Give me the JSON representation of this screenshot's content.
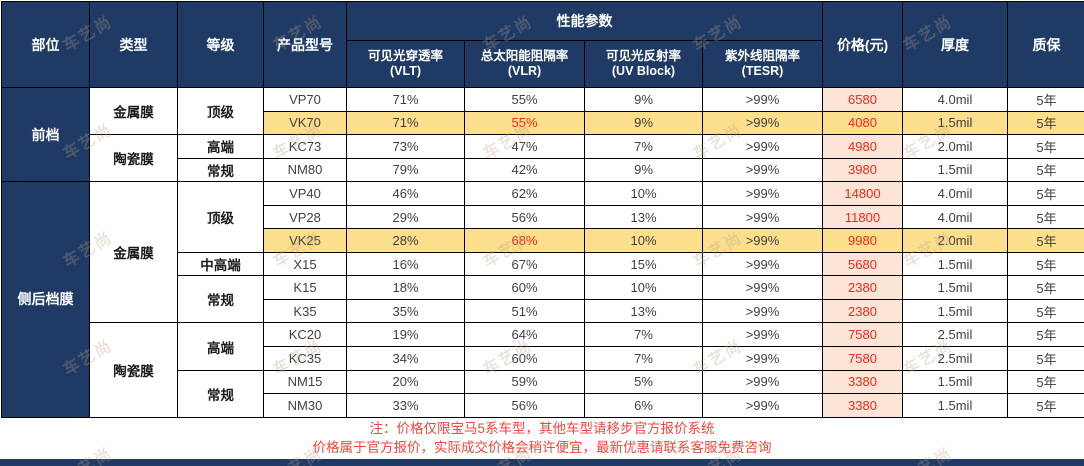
{
  "chart_data": {
    "type": "table",
    "headers": {
      "part": "部位",
      "type": "类型",
      "grade": "等级",
      "model": "产品型号",
      "performance_group": "性能参数",
      "perf_subcolumns": [
        {
          "line1": "可见光穿透率",
          "line2": "(VLT)"
        },
        {
          "line1": "总太阳能阻隔率",
          "line2": "(VLR)"
        },
        {
          "line1": "可见光反射率",
          "line2": "(UV Block)"
        },
        {
          "line1": "紫外线阻隔率",
          "line2": "(TESR)"
        }
      ],
      "price": "价格(元)",
      "thickness": "厚度",
      "warranty": "质保"
    },
    "part_groups": [
      {
        "label": "前档",
        "rowspan": 4
      },
      {
        "label": "侧后档膜",
        "rowspan": 10
      }
    ],
    "type_groups": [
      {
        "label": "金属膜",
        "rowspan": 2
      },
      {
        "label": "陶瓷膜",
        "rowspan": 2
      },
      {
        "label": "金属膜",
        "rowspan": 6
      },
      {
        "label": "陶瓷膜",
        "rowspan": 4
      }
    ],
    "grade_groups": [
      {
        "label": "顶级",
        "rowspan": 2
      },
      {
        "label": "高端",
        "rowspan": 1
      },
      {
        "label": "常规",
        "rowspan": 1
      },
      {
        "label": "顶级",
        "rowspan": 3
      },
      {
        "label": "中高端",
        "rowspan": 1
      },
      {
        "label": "常规",
        "rowspan": 2
      },
      {
        "label": "高端",
        "rowspan": 2
      },
      {
        "label": "常规",
        "rowspan": 2
      }
    ],
    "rows": [
      {
        "model": "VP70",
        "vlt": "71%",
        "vlr": "55%",
        "uv": "9%",
        "tesr": ">99%",
        "price": "6580",
        "thickness": "4.0mil",
        "warranty": "5年",
        "highlight": false,
        "vlr_red": false
      },
      {
        "model": "VK70",
        "vlt": "71%",
        "vlr": "55%",
        "uv": "9%",
        "tesr": ">99%",
        "price": "4080",
        "thickness": "1.5mil",
        "warranty": "5年",
        "highlight": true,
        "vlr_red": true
      },
      {
        "model": "KC73",
        "vlt": "73%",
        "vlr": "47%",
        "uv": "7%",
        "tesr": ">99%",
        "price": "4980",
        "thickness": "2.0mil",
        "warranty": "5年",
        "highlight": false,
        "vlr_red": false
      },
      {
        "model": "NM80",
        "vlt": "79%",
        "vlr": "42%",
        "uv": "9%",
        "tesr": ">99%",
        "price": "3980",
        "thickness": "1.5mil",
        "warranty": "5年",
        "highlight": false,
        "vlr_red": false
      },
      {
        "model": "VP40",
        "vlt": "46%",
        "vlr": "62%",
        "uv": "10%",
        "tesr": ">99%",
        "price": "14800",
        "thickness": "4.0mil",
        "warranty": "5年",
        "highlight": false,
        "vlr_red": false
      },
      {
        "model": "VP28",
        "vlt": "29%",
        "vlr": "56%",
        "uv": "13%",
        "tesr": ">99%",
        "price": "11800",
        "thickness": "4.0mil",
        "warranty": "5年",
        "highlight": false,
        "vlr_red": false
      },
      {
        "model": "VK25",
        "vlt": "28%",
        "vlr": "68%",
        "uv": "10%",
        "tesr": ">99%",
        "price": "9980",
        "thickness": "2.0mil",
        "warranty": "5年",
        "highlight": true,
        "vlr_red": true
      },
      {
        "model": "X15",
        "vlt": "16%",
        "vlr": "67%",
        "uv": "15%",
        "tesr": ">99%",
        "price": "5680",
        "thickness": "1.5mil",
        "warranty": "5年",
        "highlight": false,
        "vlr_red": false
      },
      {
        "model": "K15",
        "vlt": "18%",
        "vlr": "60%",
        "uv": "10%",
        "tesr": ">99%",
        "price": "2380",
        "thickness": "1.5mil",
        "warranty": "5年",
        "highlight": false,
        "vlr_red": false
      },
      {
        "model": "K35",
        "vlt": "35%",
        "vlr": "51%",
        "uv": "13%",
        "tesr": ">99%",
        "price": "2380",
        "thickness": "1.5mil",
        "warranty": "5年",
        "highlight": false,
        "vlr_red": false
      },
      {
        "model": "KC20",
        "vlt": "19%",
        "vlr": "64%",
        "uv": "7%",
        "tesr": ">99%",
        "price": "7580",
        "thickness": "2.5mil",
        "warranty": "5年",
        "highlight": false,
        "vlr_red": false
      },
      {
        "model": "KC35",
        "vlt": "34%",
        "vlr": "60%",
        "uv": "7%",
        "tesr": ">99%",
        "price": "7580",
        "thickness": "2.5mil",
        "warranty": "5年",
        "highlight": false,
        "vlr_red": false
      },
      {
        "model": "NM15",
        "vlt": "20%",
        "vlr": "59%",
        "uv": "5%",
        "tesr": ">99%",
        "price": "3380",
        "thickness": "1.5mil",
        "warranty": "5年",
        "highlight": false,
        "vlr_red": false
      },
      {
        "model": "NM30",
        "vlt": "33%",
        "vlr": "56%",
        "uv": "6%",
        "tesr": ">99%",
        "price": "3380",
        "thickness": "1.5mil",
        "warranty": "5年",
        "highlight": false,
        "vlr_red": false
      }
    ]
  },
  "notes": [
    "注：价格仅限宝马5系车型，其他车型请移步官方报价系统",
    "价格属于官方报价，实际成交价格会稍许便宜，最新优惠请联系客服免费咨询"
  ],
  "watermark_text": "车艺尚",
  "colors": {
    "navy": "#1f3a64",
    "yellow": "#fbdf8d",
    "pink": "#fce4d6",
    "red": "#f5281c",
    "notered": "#f4463c",
    "grid": "#000000",
    "textdark": "#3f3f3f"
  }
}
